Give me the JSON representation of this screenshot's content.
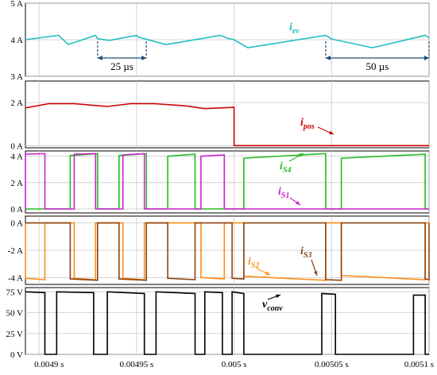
{
  "chart_data": [
    {
      "type": "line",
      "panel": "iev",
      "ylim": [
        3,
        5
      ],
      "yticks": [
        "5 A",
        "4 A",
        "3 A"
      ],
      "series": [
        {
          "label": "i",
          "sub": "ev",
          "color": "#20c0c0",
          "x": [
            0.004893,
            0.00491,
            0.004915,
            0.004929,
            0.00493,
            0.004936,
            0.00495,
            0.004951,
            0.004965,
            0.004969,
            0.004993,
            0.004997,
            0.004999,
            0.005,
            0.005007,
            0.005047,
            0.00505,
            0.005071,
            0.005098,
            0.0051
          ],
          "y": [
            4.0,
            4.12,
            3.87,
            4.12,
            4.03,
            3.98,
            4.12,
            4.07,
            3.87,
            3.9,
            4.12,
            4.03,
            4.02,
            4.0,
            3.78,
            4.12,
            4.02,
            3.78,
            4.12,
            4.05
          ]
        }
      ],
      "annotations": [
        "25 µs",
        "50 µs"
      ]
    },
    {
      "type": "line",
      "panel": "ipos",
      "ylim": [
        -0.1,
        3
      ],
      "yticks": [
        "2 A",
        "0 A"
      ],
      "series": [
        {
          "label": "i",
          "sub": "pos",
          "color": "#cc0000",
          "x": [
            0.004893,
            0.004905,
            0.004918,
            0.004935,
            0.004947,
            0.004959,
            0.004975,
            0.004985,
            0.005,
            0.005,
            0.0051
          ],
          "y": [
            1.75,
            1.95,
            1.95,
            1.82,
            1.95,
            1.95,
            1.85,
            1.72,
            1.78,
            0.0,
            0.0
          ]
        }
      ]
    },
    {
      "type": "line",
      "panel": "iS1_iS4",
      "ylim": [
        -0.3,
        4.4
      ],
      "yticks": [
        "4 A",
        "2 A",
        "0 A"
      ],
      "series": [
        {
          "label": "i",
          "sub": "S4",
          "color": "#22bb22",
          "pulses": [
            [
              0.004916,
              0.00493,
              4.05,
              4.2
            ],
            [
              0.004941,
              0.004955,
              4.05,
              4.2
            ],
            [
              0.004966,
              0.00498,
              4.0,
              4.15
            ],
            [
              0.005005,
              0.005047,
              3.85,
              4.2
            ],
            [
              0.005055,
              0.005098,
              3.85,
              4.15
            ]
          ]
        },
        {
          "label": "i",
          "sub": "S1",
          "color": "#cc22cc",
          "pulses": [
            [
              0.004893,
              0.004903,
              4.15,
              4.2
            ],
            [
              0.004918,
              0.004929,
              4.15,
              4.2
            ],
            [
              0.004943,
              0.004954,
              4.1,
              4.2
            ],
            [
              0.004983,
              0.004995,
              4.0,
              4.1
            ]
          ]
        }
      ]
    },
    {
      "type": "line",
      "panel": "iS2_iS3",
      "ylim": [
        -4.5,
        0.5
      ],
      "yticks": [
        "0 A",
        "-2 A",
        "-4 A"
      ],
      "series": [
        {
          "label": "i",
          "sub": "S2",
          "color": "#ff8c1a",
          "pulses": [
            [
              0.004893,
              0.004903,
              -4.05,
              -4.15
            ],
            [
              0.004918,
              0.004929,
              -4.05,
              -4.15
            ],
            [
              0.004943,
              0.004954,
              -4.05,
              -4.15
            ],
            [
              0.004983,
              0.004995,
              -4.0,
              -4.1
            ],
            [
              0.005005,
              0.005047,
              -3.9,
              -4.2
            ],
            [
              0.005055,
              0.005098,
              -3.85,
              -4.15
            ]
          ]
        },
        {
          "label": "i",
          "sub": "S3",
          "color": "#8b4513",
          "pulses": [
            [
              0.004916,
              0.00493,
              -4.1,
              -4.2
            ],
            [
              0.004941,
              0.004955,
              -4.1,
              -4.2
            ],
            [
              0.004966,
              0.00498,
              -4.05,
              -4.15
            ],
            [
              0.004999,
              0.005005,
              -4.05,
              -4.1
            ],
            [
              0.005047,
              0.005055,
              -4.15,
              -4.2
            ],
            [
              0.005098,
              0.0051,
              -4.1,
              -4.15
            ]
          ]
        }
      ]
    },
    {
      "type": "line",
      "panel": "vconv",
      "ylim": [
        0,
        80
      ],
      "yticks": [
        "75 V",
        "50 V",
        "25 V",
        "0 V"
      ],
      "xticks": [
        "0.0049 s",
        "0.00495 s",
        "0.005 s",
        "0.00505 s",
        "0.0051 s"
      ],
      "series": [
        {
          "label": "v",
          "sub": "conv",
          "color": "#000000",
          "x": [
            0.004893,
            0.004903,
            0.004903,
            0.004909,
            0.004909,
            0.004928,
            0.004928,
            0.004935,
            0.004935,
            0.004954,
            0.004954,
            0.00496,
            0.00496,
            0.00498,
            0.00498,
            0.004985,
            0.004985,
            0.004994,
            0.004994,
            0.004999,
            0.004999,
            0.005005,
            0.005005,
            0.005045,
            0.005045,
            0.005052,
            0.005052,
            0.005092,
            0.005092,
            0.005098,
            0.005098,
            0.0051
          ],
          "y": [
            75,
            74,
            0,
            0,
            75,
            74,
            0,
            0,
            75,
            73,
            0,
            0,
            75,
            73,
            0,
            0,
            75,
            74,
            0,
            0,
            75,
            73,
            0,
            0,
            73,
            72,
            0,
            0,
            71,
            71,
            0,
            0
          ]
        }
      ]
    }
  ]
}
